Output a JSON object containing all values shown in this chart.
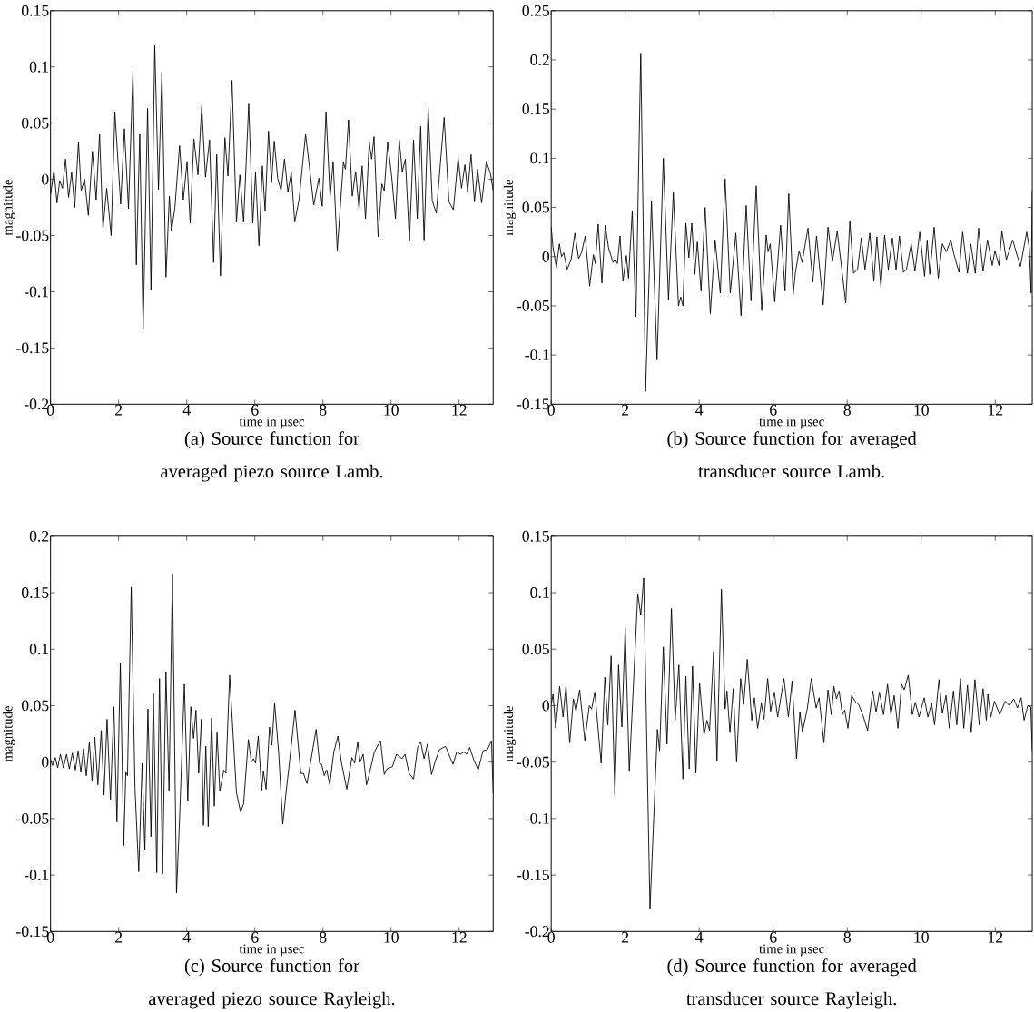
{
  "chart_data": [
    {
      "type": "line",
      "color": "#000000",
      "xlabel": "time in µsec",
      "ylabel": "magnitude",
      "annotations": [
        "(a) Source function for averaged piezo source Lamb."
      ],
      "xlim": [
        0,
        13
      ],
      "ylim": [
        -0.2,
        0.15
      ],
      "xticks": [
        0,
        2,
        4,
        6,
        8,
        10,
        12
      ],
      "yticks": [
        -0.2,
        -0.15,
        -0.1,
        -0.05,
        0,
        0.05,
        0.1,
        0.15
      ],
      "x": [
        0,
        0.1,
        0.19,
        0.27,
        0.35,
        0.44,
        0.53,
        0.62,
        0.71,
        0.82,
        0.9,
        1.0,
        1.11,
        1.23,
        1.34,
        1.44,
        1.54,
        1.65,
        1.78,
        1.89,
        2.06,
        2.17,
        2.29,
        2.42,
        2.52,
        2.62,
        2.72,
        2.85,
        2.95,
        3.06,
        3.17,
        3.27,
        3.39,
        3.49,
        3.55,
        3.65,
        3.79,
        3.9,
        4.01,
        4.1,
        4.21,
        4.33,
        4.44,
        4.55,
        4.67,
        4.79,
        4.88,
        4.99,
        5.12,
        5.21,
        5.33,
        5.46,
        5.56,
        5.67,
        5.82,
        5.94,
        6.02,
        6.12,
        6.22,
        6.3,
        6.4,
        6.49,
        6.57,
        6.67,
        6.77,
        6.87,
        6.97,
        7.07,
        7.17,
        7.3,
        7.49,
        7.6,
        7.73,
        7.88,
        7.98,
        8.09,
        8.21,
        8.3,
        8.42,
        8.6,
        8.66,
        8.75,
        8.86,
        8.96,
        9.06,
        9.15,
        9.25,
        9.36,
        9.43,
        9.5,
        9.62,
        9.73,
        9.8,
        9.9,
        10.02,
        10.13,
        10.24,
        10.33,
        10.42,
        10.54,
        10.66,
        10.77,
        10.87,
        10.97,
        11.09,
        11.21,
        11.33,
        11.56,
        11.7,
        11.83,
        11.97,
        12.07,
        12.17,
        12.25,
        12.35,
        12.45,
        12.54,
        12.66,
        12.8,
        12.92,
        13
      ],
      "values": [
        -0.014,
        0.008,
        -0.021,
        -0.001,
        -0.008,
        0.018,
        -0.016,
        0.006,
        -0.025,
        0.033,
        -0.01,
        0,
        -0.032,
        0.025,
        -0.018,
        0.04,
        -0.044,
        -0.008,
        -0.05,
        0.06,
        -0.022,
        0.045,
        -0.026,
        0.096,
        -0.076,
        0.04,
        -0.133,
        0.063,
        -0.098,
        0.119,
        -0.009,
        0.095,
        -0.087,
        -0.015,
        -0.046,
        -0.026,
        0.03,
        -0.018,
        0.016,
        -0.039,
        0.036,
        0.004,
        0.065,
        0.002,
        0.035,
        -0.074,
        0.022,
        -0.086,
        0.037,
        0.003,
        0.088,
        -0.038,
        0.004,
        -0.038,
        0.067,
        -0.039,
        0.006,
        -0.059,
        0.012,
        -0.028,
        0.043,
        -0.003,
        0.034,
        0.001,
        -0.01,
        0.018,
        -0.011,
        0.006,
        -0.038,
        -0.018,
        0.04,
        0.012,
        -0.023,
        0.001,
        -0.024,
        0.06,
        -0.016,
        0.016,
        -0.063,
        0.015,
        0.009,
        0.053,
        -0.015,
        0.007,
        -0.027,
        0.012,
        -0.035,
        0.033,
        0.018,
        0.038,
        -0.051,
        -0.004,
        -0.01,
        0.033,
        0.002,
        -0.035,
        0.035,
        0.007,
        0.018,
        -0.055,
        0.035,
        -0.035,
        0.047,
        -0.054,
        0.063,
        -0.019,
        -0.03,
        0.055,
        -0.02,
        -0.027,
        0.019,
        -0.008,
        0.013,
        -0.011,
        0.022,
        -0.02,
        0.009,
        -0.021,
        0.016,
        0.005,
        -0.01
      ]
    },
    {
      "type": "line",
      "color": "#000000",
      "xlabel": "time in µsec",
      "ylabel": "magnitude",
      "annotations": [
        "(b) Source function for averaged transducer source Lamb."
      ],
      "xlim": [
        0,
        13
      ],
      "ylim": [
        -0.15,
        0.25
      ],
      "xticks": [
        0,
        2,
        4,
        6,
        8,
        10,
        12
      ],
      "yticks": [
        -0.15,
        -0.1,
        -0.05,
        0,
        0.05,
        0.1,
        0.15,
        0.2,
        0.25
      ],
      "x": [
        0,
        0.05,
        0.14,
        0.22,
        0.28,
        0.34,
        0.43,
        0.54,
        0.64,
        0.74,
        0.82,
        0.92,
        1.04,
        1.14,
        1.19,
        1.27,
        1.37,
        1.46,
        1.55,
        1.67,
        1.73,
        1.79,
        1.86,
        1.94,
        2.03,
        2.09,
        2.19,
        2.29,
        2.42,
        2.55,
        2.71,
        2.86,
        3.03,
        3.17,
        3.3,
        3.44,
        3.5,
        3.56,
        3.64,
        3.72,
        3.8,
        3.88,
        3.95,
        4.05,
        4.16,
        4.3,
        4.43,
        4.57,
        4.7,
        4.84,
        4.99,
        5.13,
        5.27,
        5.4,
        5.54,
        5.69,
        5.81,
        5.86,
        5.92,
        6.04,
        6.2,
        6.32,
        6.42,
        6.54,
        6.6,
        6.7,
        6.78,
        6.94,
        7.07,
        7.17,
        7.35,
        7.48,
        7.6,
        7.73,
        7.96,
        8.07,
        8.17,
        8.28,
        8.38,
        8.48,
        8.61,
        8.72,
        8.8,
        8.91,
        9.01,
        9.11,
        9.22,
        9.32,
        9.41,
        9.52,
        9.6,
        9.73,
        9.83,
        9.96,
        10.09,
        10.16,
        10.23,
        10.35,
        10.46,
        10.57,
        10.68,
        10.8,
        10.88,
        11.02,
        11.12,
        11.25,
        11.34,
        11.46,
        11.55,
        11.67,
        11.79,
        11.92,
        11.99,
        12.1,
        12.18,
        12.3,
        12.47,
        12.68,
        12.85,
        12.92,
        12.97,
        13
      ],
      "values": [
        0.03,
        0.009,
        -0.011,
        0.013,
        0,
        0.004,
        -0.013,
        -0.003,
        0.024,
        -0.002,
        0.004,
        0.021,
        -0.03,
        0.002,
        -0.007,
        0.033,
        -0.027,
        0.032,
        0.009,
        -0.006,
        -0.003,
        -0.007,
        0.021,
        -0.025,
        0.001,
        -0.022,
        0.046,
        -0.061,
        0.207,
        -0.137,
        0.056,
        -0.105,
        0.1,
        -0.044,
        0.065,
        -0.05,
        -0.041,
        -0.05,
        0.034,
        -0.001,
        0.034,
        -0.018,
        0.015,
        -0.035,
        0.05,
        -0.058,
        0.017,
        -0.037,
        0.079,
        -0.037,
        0.024,
        -0.06,
        0.052,
        -0.045,
        0.072,
        -0.055,
        0.022,
        0.005,
        0.013,
        -0.046,
        0.032,
        -0.035,
        0.064,
        -0.038,
        -0.016,
        0.006,
        -0.006,
        0.029,
        -0.026,
        0.021,
        -0.049,
        0.03,
        -0.005,
        0.026,
        -0.047,
        0.036,
        -0.017,
        -0.013,
        0.019,
        -0.013,
        0.024,
        -0.025,
        0.02,
        -0.031,
        0.022,
        -0.013,
        0.019,
        -0.013,
        0.021,
        -0.016,
        -0.013,
        0.013,
        -0.015,
        0.025,
        -0.02,
        0.017,
        -0.018,
        0.03,
        -0.022,
        0.013,
        0.005,
        0.017,
        0.003,
        -0.016,
        0.025,
        -0.017,
        0.013,
        -0.017,
        0.029,
        -0.015,
        0.017,
        -0.009,
        0.006,
        -0.009,
        0.026,
        -0.003,
        0.017,
        -0.01,
        0.025,
        0.009,
        -0.037,
        0.067
      ]
    },
    {
      "type": "line",
      "color": "#000000",
      "xlabel": "time in µsec",
      "ylabel": "magnitude",
      "annotations": [
        "(c) Source function for averaged piezo source Rayleigh."
      ],
      "xlim": [
        0,
        13
      ],
      "ylim": [
        -0.15,
        0.2
      ],
      "xticks": [
        0,
        2,
        4,
        6,
        8,
        10,
        12
      ],
      "yticks": [
        -0.15,
        -0.1,
        -0.05,
        0,
        0.05,
        0.1,
        0.15,
        0.2
      ],
      "x": [
        0,
        0.06,
        0.14,
        0.21,
        0.29,
        0.38,
        0.47,
        0.55,
        0.64,
        0.73,
        0.81,
        0.89,
        0.97,
        1.05,
        1.14,
        1.22,
        1.3,
        1.39,
        1.49,
        1.57,
        1.66,
        1.76,
        1.86,
        1.95,
        2.05,
        2.15,
        2.21,
        2.26,
        2.37,
        2.48,
        2.59,
        2.69,
        2.77,
        2.86,
        2.95,
        3.02,
        3.12,
        3.2,
        3.29,
        3.39,
        3.48,
        3.58,
        3.7,
        3.79,
        3.93,
        4.03,
        4.12,
        4.2,
        4.27,
        4.35,
        4.43,
        4.49,
        4.56,
        4.63,
        4.73,
        4.81,
        4.89,
        4.97,
        5.09,
        5.15,
        5.26,
        5.46,
        5.58,
        5.67,
        5.81,
        5.9,
        5.96,
        6.02,
        6.1,
        6.2,
        6.25,
        6.33,
        6.43,
        6.5,
        6.58,
        6.7,
        6.82,
        6.92,
        7.01,
        7.18,
        7.35,
        7.43,
        7.53,
        7.8,
        7.9,
        7.96,
        8.04,
        8.11,
        8.2,
        8.32,
        8.44,
        8.54,
        8.7,
        8.85,
        8.93,
        9.02,
        9.09,
        9.18,
        9.28,
        9.35,
        9.51,
        9.69,
        9.8,
        9.88,
        10.04,
        10.16,
        10.32,
        10.41,
        10.53,
        10.66,
        10.78,
        10.87,
        10.97,
        11.07,
        11.19,
        11.3,
        11.42,
        11.6,
        11.82,
        11.93,
        12.04,
        12.14,
        12.22,
        12.31,
        12.43,
        12.56,
        12.7,
        12.83,
        12.95,
        13
      ],
      "values": [
        0.002,
        -0.003,
        0.004,
        -0.005,
        0.007,
        -0.005,
        0.007,
        -0.006,
        0.008,
        -0.007,
        0.01,
        -0.009,
        0.012,
        -0.012,
        0.018,
        -0.017,
        0.022,
        -0.02,
        0.028,
        -0.029,
        0.038,
        -0.033,
        0.049,
        -0.053,
        0.088,
        -0.074,
        -0.009,
        -0.012,
        0.155,
        -0.023,
        -0.097,
        -0.001,
        -0.078,
        0.047,
        -0.066,
        0.061,
        -0.098,
        0.074,
        -0.099,
        0.08,
        -0.026,
        0.167,
        -0.116,
        -0.05,
        0.069,
        -0.034,
        0.049,
        0.021,
        0.046,
        -0.01,
        0.038,
        -0.056,
        0.014,
        -0.057,
        0.039,
        -0.039,
        0.026,
        -0.026,
        -0.007,
        -0.01,
        0.077,
        -0.027,
        -0.044,
        -0.037,
        0.02,
        0,
        0.003,
        -0.001,
        0.023,
        -0.025,
        -0.008,
        -0.024,
        0.031,
        0.015,
        0.052,
        0.008,
        -0.055,
        -0.026,
        -0.002,
        0.046,
        -0.01,
        -0.01,
        -0.019,
        0.029,
        -0.001,
        -0.002,
        -0.012,
        -0.007,
        -0.02,
        0.009,
        0.023,
        0,
        -0.024,
        0.004,
        -0.001,
        0.018,
        0,
        0.007,
        -0.02,
        -0.012,
        0.009,
        0.019,
        -0.011,
        -0.006,
        -0.004,
        0.007,
        0.003,
        0.007,
        -0.01,
        -0.015,
        0.013,
        0.018,
        0.003,
        0.016,
        -0.011,
        0.001,
        0.011,
        0.014,
        -0.002,
        0.009,
        0.007,
        0.009,
        0.007,
        0.013,
        0.002,
        -0.007,
        0.01,
        0.011,
        0.019,
        -0.028
      ]
    },
    {
      "type": "line",
      "color": "#000000",
      "xlabel": "time in µsec",
      "ylabel": "magnitude",
      "annotations": [
        "(d) Source function for averaged transducer source Rayleigh."
      ],
      "xlim": [
        0,
        13
      ],
      "ylim": [
        -0.2,
        0.15
      ],
      "xticks": [
        0,
        2,
        4,
        6,
        8,
        10,
        12
      ],
      "yticks": [
        -0.2,
        -0.15,
        -0.1,
        -0.05,
        0,
        0.05,
        0.1,
        0.15
      ],
      "x": [
        0,
        0.05,
        0.12,
        0.23,
        0.32,
        0.4,
        0.5,
        0.6,
        0.67,
        0.77,
        0.91,
        1.03,
        1.09,
        1.18,
        1.35,
        1.45,
        1.53,
        1.62,
        1.72,
        1.82,
        1.91,
        2.0,
        2.11,
        2.34,
        2.42,
        2.5,
        2.67,
        2.87,
        2.93,
        3.03,
        3.13,
        3.25,
        3.35,
        3.45,
        3.56,
        3.64,
        3.73,
        3.82,
        3.91,
        4.01,
        4.13,
        4.21,
        4.28,
        4.39,
        4.48,
        4.6,
        4.7,
        4.75,
        4.83,
        4.92,
        5.01,
        5.12,
        5.2,
        5.3,
        5.42,
        5.49,
        5.58,
        5.68,
        5.75,
        5.85,
        5.93,
        6.03,
        6.12,
        6.29,
        6.41,
        6.51,
        6.63,
        6.72,
        6.79,
        6.92,
        7.03,
        7.16,
        7.24,
        7.37,
        7.48,
        7.57,
        7.64,
        7.71,
        7.78,
        7.87,
        7.93,
        8.02,
        8.12,
        8.23,
        8.31,
        8.44,
        8.55,
        8.69,
        8.78,
        8.87,
        8.98,
        9.09,
        9.18,
        9.27,
        9.37,
        9.47,
        9.54,
        9.65,
        9.76,
        9.84,
        9.94,
        10.08,
        10.18,
        10.28,
        10.36,
        10.48,
        10.57,
        10.67,
        10.76,
        10.87,
        10.96,
        11.06,
        11.15,
        11.25,
        11.35,
        11.45,
        11.57,
        11.67,
        11.76,
        11.8,
        11.88,
        11.98,
        12.12,
        12.27,
        12.38,
        12.5,
        12.6,
        12.7,
        12.78,
        12.88,
        12.96,
        13
      ],
      "values": [
        0.001,
        0.01,
        -0.02,
        0.017,
        -0.01,
        0.018,
        -0.033,
        0.006,
        -0.005,
        0.014,
        -0.031,
        0,
        -0.003,
        0.012,
        -0.051,
        0.025,
        -0.017,
        0.044,
        -0.079,
        0.036,
        -0.019,
        0.069,
        -0.058,
        0.099,
        0.08,
        0.113,
        -0.18,
        -0.021,
        -0.04,
        0.052,
        -0.034,
        0.086,
        -0.013,
        0.036,
        -0.065,
        0.026,
        -0.056,
        0.035,
        -0.06,
        0.02,
        -0.026,
        -0.013,
        -0.022,
        0.048,
        -0.049,
        0.103,
        -0.003,
        0.013,
        -0.024,
        0.015,
        -0.05,
        0.024,
        0.001,
        0.041,
        -0.013,
        0.007,
        -0.02,
        0.002,
        -0.012,
        0.024,
        -0.005,
        0.012,
        -0.01,
        0.024,
        -0.01,
        0.022,
        -0.047,
        -0.006,
        -0.023,
        -0.003,
        0.024,
        -0.002,
        0.007,
        -0.033,
        0.014,
        -0.008,
        0.017,
        0.006,
        0.013,
        -0.008,
        -0.004,
        -0.02,
        0.009,
        0.003,
        0.001,
        -0.01,
        -0.022,
        0.013,
        -0.006,
        0.012,
        -0.008,
        0.019,
        -0.008,
        0.009,
        -0.02,
        0.019,
        0.014,
        0.027,
        -0.008,
        0.003,
        -0.01,
        0.007,
        -0.01,
        0.002,
        -0.017,
        0.023,
        -0.007,
        0.009,
        -0.02,
        0.013,
        -0.017,
        0.024,
        -0.02,
        0.018,
        -0.024,
        0.023,
        -0.017,
        0.015,
        -0.013,
        0.01,
        -0.01,
        0.004,
        -0.008,
        0.004,
        0,
        0.006,
        -0.002,
        0.007,
        -0.013,
        0,
        -0.001,
        -0.04
      ]
    }
  ]
}
